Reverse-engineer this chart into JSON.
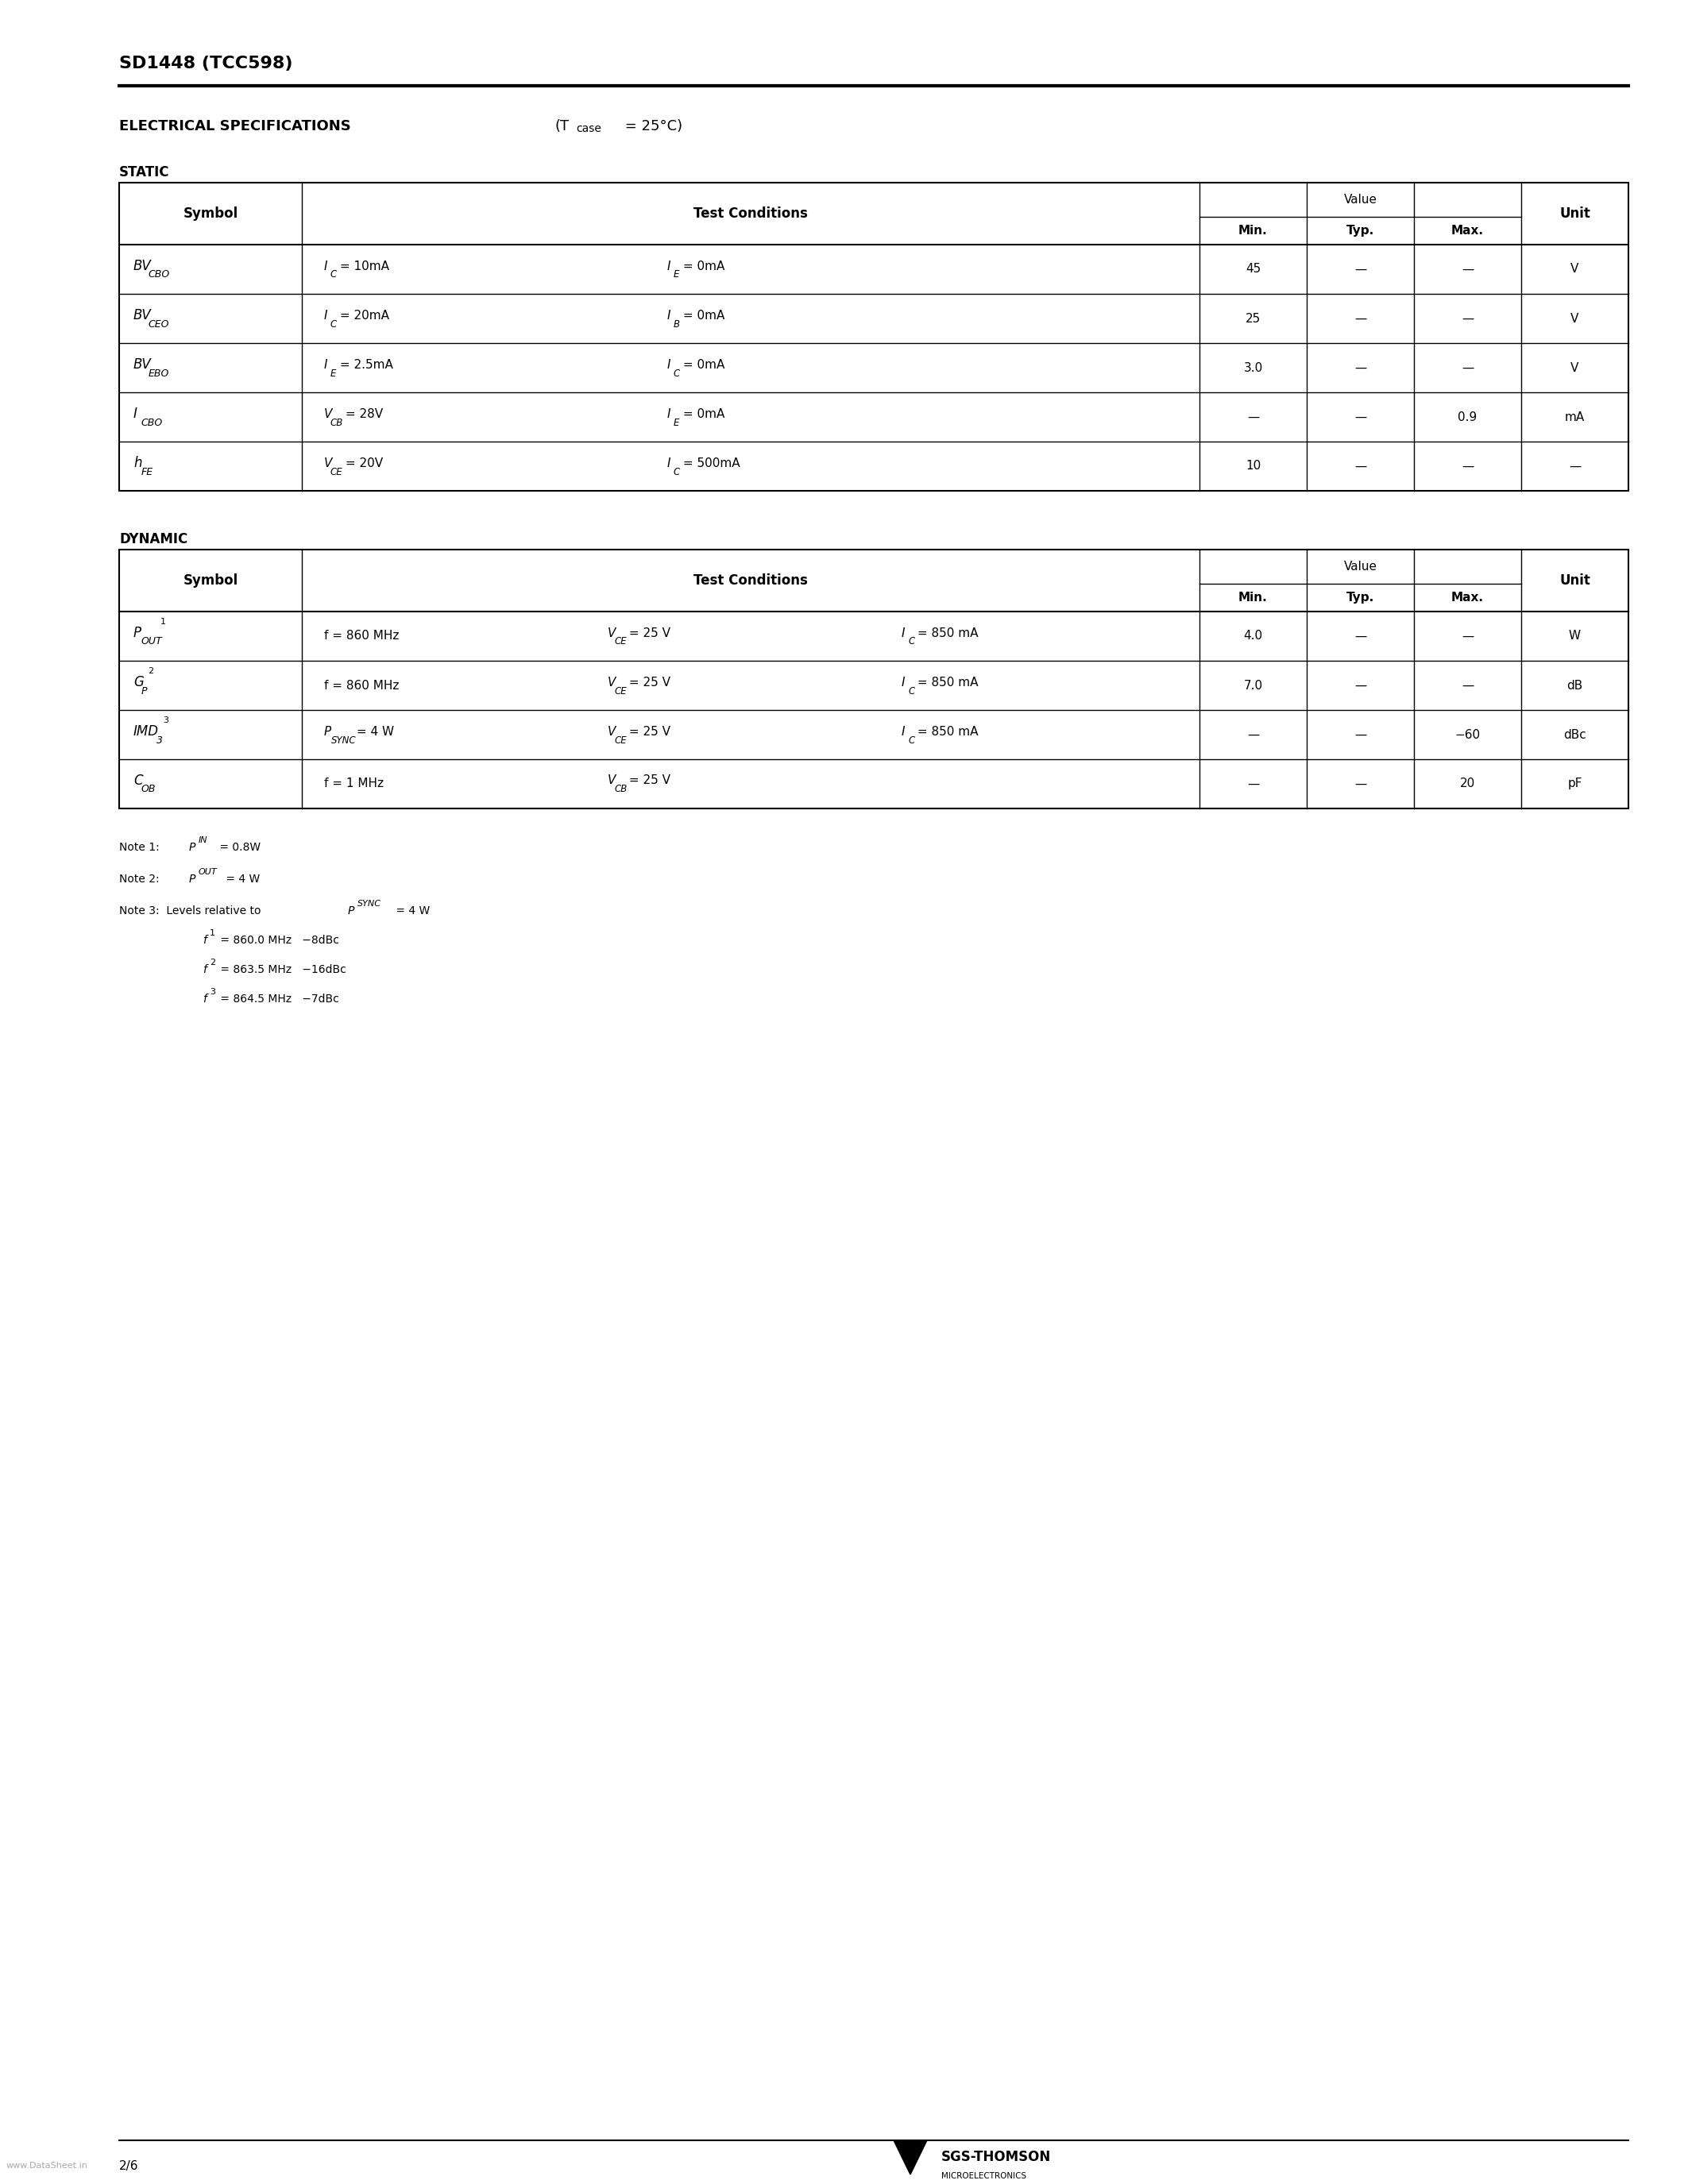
{
  "page_title": "SD1448 (TCC598)",
  "static_label": "STATIC",
  "dynamic_label": "DYNAMIC",
  "static_rows": [
    {
      "symbol_main": "BV",
      "symbol_sub": "CBO",
      "cond1_main": "I",
      "cond1_sub": "C",
      "cond1_rest": " = 10mA",
      "cond2_main": "I",
      "cond2_sub": "E",
      "cond2_rest": " = 0mA",
      "min": "45",
      "typ": "—",
      "max": "—",
      "unit": "V"
    },
    {
      "symbol_main": "BV",
      "symbol_sub": "CEO",
      "cond1_main": "I",
      "cond1_sub": "C",
      "cond1_rest": " = 20mA",
      "cond2_main": "I",
      "cond2_sub": "B",
      "cond2_rest": " = 0mA",
      "min": "25",
      "typ": "—",
      "max": "—",
      "unit": "V"
    },
    {
      "symbol_main": "BV",
      "symbol_sub": "EBO",
      "cond1_main": "I",
      "cond1_sub": "E",
      "cond1_rest": " = 2.5mA",
      "cond2_main": "I",
      "cond2_sub": "C",
      "cond2_rest": " = 0mA",
      "min": "3.0",
      "typ": "—",
      "max": "—",
      "unit": "V"
    },
    {
      "symbol_main": "I",
      "symbol_sub": "CBO",
      "cond1_main": "V",
      "cond1_sub": "CB",
      "cond1_rest": " = 28V",
      "cond2_main": "I",
      "cond2_sub": "E",
      "cond2_rest": " = 0mA",
      "min": "—",
      "typ": "—",
      "max": "0.9",
      "unit": "mA"
    },
    {
      "symbol_main": "h",
      "symbol_sub": "FE",
      "cond1_main": "V",
      "cond1_sub": "CE",
      "cond1_rest": " = 20V",
      "cond2_main": "I",
      "cond2_sub": "C",
      "cond2_rest": " = 500mA",
      "min": "10",
      "typ": "—",
      "max": "—",
      "unit": "—"
    }
  ],
  "dynamic_rows": [
    {
      "symbol_main": "P",
      "symbol_sub": "OUT",
      "symbol_sup": "1",
      "cond1_main": "f = 860 MHz",
      "cond2_main": "V",
      "cond2_sub": "CE",
      "cond2_rest": " = 25 V",
      "cond3_main": "I",
      "cond3_sub": "C",
      "cond3_rest": " = 850 mA",
      "min": "4.0",
      "typ": "—",
      "max": "—",
      "unit": "W"
    },
    {
      "symbol_main": "G",
      "symbol_sub": "P",
      "symbol_sup": "2",
      "cond1_main": "f = 860 MHz",
      "cond2_main": "V",
      "cond2_sub": "CE",
      "cond2_rest": " = 25 V",
      "cond3_main": "I",
      "cond3_sub": "C",
      "cond3_rest": " = 850 mA",
      "min": "7.0",
      "typ": "—",
      "max": "—",
      "unit": "dB"
    },
    {
      "symbol_main": "IMD",
      "symbol_sub": "3",
      "symbol_sup": "3",
      "cond1_main": "P",
      "cond1_sub": "SYNC",
      "cond1_rest": " = 4 W",
      "cond2_main": "V",
      "cond2_sub": "CE",
      "cond2_rest": " = 25 V",
      "cond3_main": "I",
      "cond3_sub": "C",
      "cond3_rest": " = 850 mA",
      "min": "—",
      "typ": "—",
      "max": "−60",
      "unit": "dBc"
    },
    {
      "symbol_main": "C",
      "symbol_sub": "OB",
      "symbol_sup": "",
      "cond1_main": "f = 1 MHz",
      "cond2_main": "V",
      "cond2_sub": "CB",
      "cond2_rest": " = 25 V",
      "cond3_main": "",
      "cond3_sub": "",
      "cond3_rest": "",
      "min": "—",
      "typ": "—",
      "max": "20",
      "unit": "pF"
    }
  ],
  "page_number": "2/6",
  "bg_color": "#ffffff",
  "text_color": "#000000",
  "table_line_color": "#000000"
}
